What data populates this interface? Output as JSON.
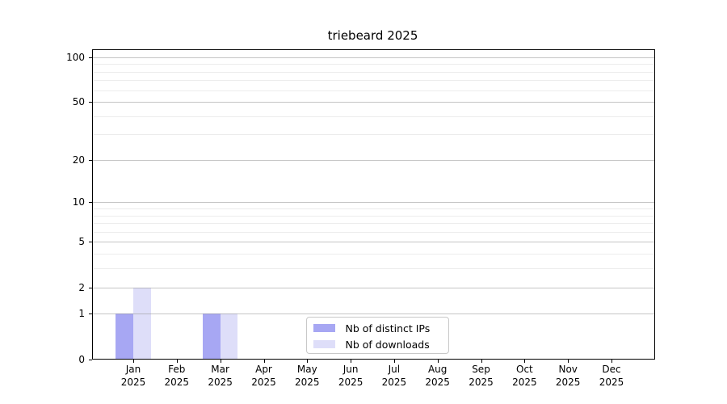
{
  "chart_data": {
    "type": "bar",
    "title": "triebeard 2025",
    "categories": [
      {
        "month": "Jan",
        "year": "2025"
      },
      {
        "month": "Feb",
        "year": "2025"
      },
      {
        "month": "Mar",
        "year": "2025"
      },
      {
        "month": "Apr",
        "year": "2025"
      },
      {
        "month": "May",
        "year": "2025"
      },
      {
        "month": "Jun",
        "year": "2025"
      },
      {
        "month": "Jul",
        "year": "2025"
      },
      {
        "month": "Aug",
        "year": "2025"
      },
      {
        "month": "Sep",
        "year": "2025"
      },
      {
        "month": "Oct",
        "year": "2025"
      },
      {
        "month": "Nov",
        "year": "2025"
      },
      {
        "month": "Dec",
        "year": "2025"
      }
    ],
    "series": [
      {
        "name": "Nb of distinct IPs",
        "color": "#a7a7f3",
        "values": [
          1,
          0,
          1,
          0,
          0,
          0,
          0,
          0,
          0,
          0,
          0,
          0
        ]
      },
      {
        "name": "Nb of downloads",
        "color": "#dedef9",
        "values": [
          2,
          0,
          1,
          0,
          0,
          0,
          0,
          0,
          0,
          0,
          0,
          0
        ]
      }
    ],
    "yscale": "log1p",
    "ylim": [
      0,
      113
    ],
    "y_major_ticks": [
      0,
      1,
      2,
      5,
      10,
      20,
      50,
      100
    ],
    "y_minor_gridlines": [
      3,
      4,
      6,
      7,
      8,
      9,
      30,
      40,
      60,
      70,
      80,
      90
    ],
    "grid": true,
    "legend_position": "bottom-center-inside"
  }
}
